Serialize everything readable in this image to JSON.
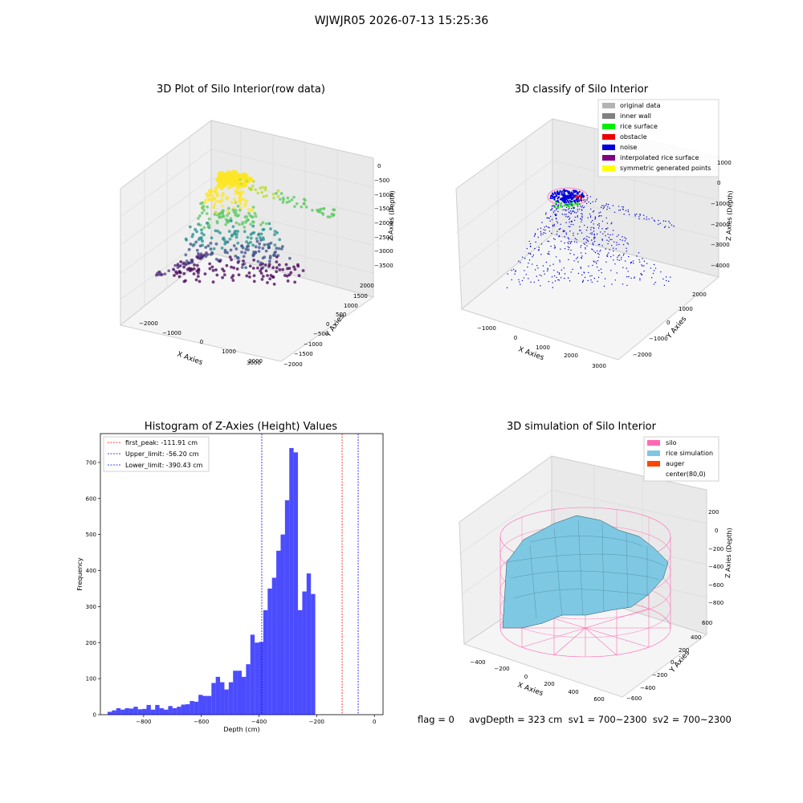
{
  "suptitle": "WJWJR05 2026-07-13 15:25:36",
  "panels": {
    "raw": {
      "title": "3D Plot of Silo Interior(row data)",
      "xlabel": "X Axies",
      "ylabel": "Y Axies",
      "zlabel": "Z Axies (Depth)",
      "xticks": [
        "−2000",
        "−1000",
        "0",
        "1000",
        "2000",
        "3000"
      ],
      "yticks": [
        "2000",
        "1500",
        "1000",
        "500",
        "0",
        "−500",
        "−1000",
        "−1500",
        "−2000"
      ],
      "zticks": [
        "0",
        "−500",
        "−1000",
        "−1500",
        "−2000",
        "−2500",
        "−3000",
        "−3500"
      ]
    },
    "classify": {
      "title": "3D classify of Silo Interior",
      "xlabel": "X Axies",
      "ylabel": "Y Axies",
      "zlabel": "Z Axies (Depth)",
      "xticks": [
        "−1000",
        "0",
        "1000",
        "2000",
        "3000"
      ],
      "yticks": [
        "2000",
        "1000",
        "0",
        "−1000",
        "−2000"
      ],
      "zticks": [
        "1000",
        "0",
        "−1000",
        "−2000",
        "−3000",
        "−4000"
      ],
      "legend": [
        {
          "label": "original data",
          "color": "#b3b3b3"
        },
        {
          "label": "inner wall",
          "color": "#808080"
        },
        {
          "label": "rice surface",
          "color": "#00ee00"
        },
        {
          "label": "obstacle",
          "color": "#ee0000"
        },
        {
          "label": "noise",
          "color": "#0000dd"
        },
        {
          "label": "interpolated rice surface",
          "color": "#800080"
        },
        {
          "label": "symmetric generated points",
          "color": "#ffff00"
        }
      ]
    },
    "simulation": {
      "title": "3D simulation of Silo Interior",
      "xlabel": "X Axies",
      "ylabel": "Y Axies",
      "zlabel": "Z Axies (Depth)",
      "xticks": [
        "−400",
        "−200",
        "0",
        "200",
        "400",
        "600"
      ],
      "yticks": [
        "600",
        "400",
        "200",
        "0",
        "−200",
        "−400",
        "−600"
      ],
      "zticks": [
        "200",
        "0",
        "−200",
        "−400",
        "−600",
        "−800"
      ],
      "legend": [
        {
          "label": "silo",
          "color": "#ff69b4"
        },
        {
          "label": "rice simulation",
          "color": "#7ec8e3"
        },
        {
          "label": "auger",
          "color": "#ff4500"
        },
        {
          "label": "center(80,0)",
          "color": ""
        }
      ]
    }
  },
  "chart_data": {
    "type": "bar",
    "title": "Histogram of Z-Axies (Height) Values",
    "xlabel": "Depth (cm)",
    "ylabel": "Frequency",
    "xlim": [
      -950,
      30
    ],
    "ylim": [
      0,
      780
    ],
    "xticks": [
      -800,
      -600,
      -400,
      -200,
      0
    ],
    "yticks": [
      0,
      100,
      200,
      300,
      400,
      500,
      600,
      700
    ],
    "bin_start": -925,
    "bin_width": 15,
    "values": [
      8,
      12,
      18,
      14,
      18,
      17,
      22,
      15,
      16,
      27,
      14,
      27,
      18,
      14,
      24,
      18,
      22,
      28,
      29,
      38,
      36,
      55,
      52,
      52,
      88,
      105,
      90,
      70,
      90,
      122,
      122,
      105,
      140,
      222,
      200,
      202,
      290,
      350,
      380,
      455,
      500,
      595,
      740,
      728,
      290,
      342,
      392,
      335
    ],
    "bar_color": "#0000ff",
    "vlines": [
      {
        "label": "first_peak: -111.91 cm",
        "x": -111.91,
        "color": "#ff0000"
      },
      {
        "label": "Upper_limit: -56.20 cm",
        "x": -56.2,
        "color": "#0000ff"
      },
      {
        "label": "Lower_limit: -390.43 cm",
        "x": -390.43,
        "color": "#0000ff"
      }
    ]
  },
  "footer": "flag = 0     avgDepth = 323 cm  sv1 = 700~2300  sv2 = 700~2300"
}
